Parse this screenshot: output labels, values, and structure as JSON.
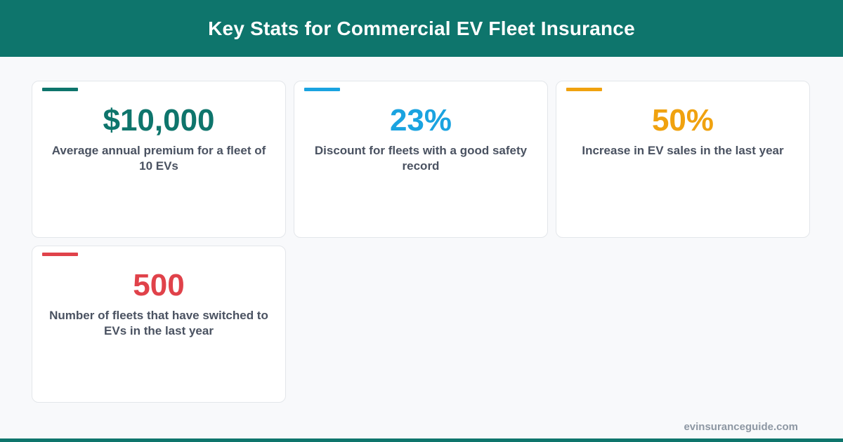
{
  "header": {
    "title": "Key Stats for Commercial EV Fleet Insurance"
  },
  "colors": {
    "header_bg": "#0e756c",
    "stat_teal": "#0e756c",
    "stat_blue": "#1aa3e0",
    "stat_orange": "#f0a20f",
    "stat_red": "#e0424a",
    "desc_text": "#4a5261"
  },
  "cards": [
    {
      "value": "$10,000",
      "description": "Average annual premium for a fleet of 10 EVs",
      "accent_color": "#0e756c"
    },
    {
      "value": "23%",
      "description": "Discount for fleets with a good safety record",
      "accent_color": "#1aa3e0"
    },
    {
      "value": "50%",
      "description": "Increase in EV sales in the last year",
      "accent_color": "#f0a20f"
    },
    {
      "value": "500",
      "description": "Number of fleets that have switched to EVs in the last year",
      "accent_color": "#e0424a"
    }
  ],
  "footer": {
    "url": "evinsuranceguide.com"
  }
}
